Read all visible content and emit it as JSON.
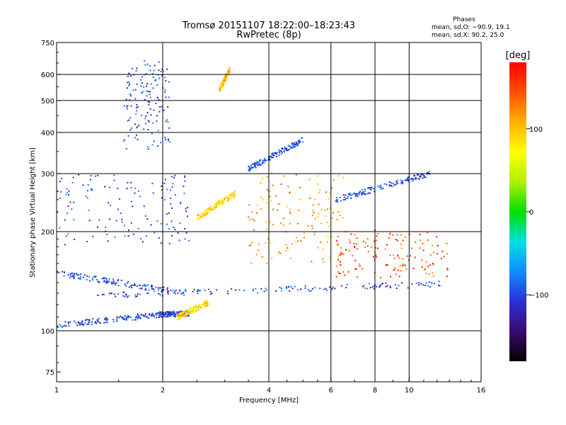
{
  "chart_data": {
    "type": "scatter",
    "title": "Tromsø 20151107 18:22:00–18:23:43",
    "subtitle": "RwPretec (8p)",
    "xlabel": "Frequency [MHz]",
    "ylabel": "Stationary phase Virtual Height [km]",
    "x_scale": "log",
    "y_scale": "log",
    "xlim": [
      1,
      16
    ],
    "ylim": [
      70,
      750
    ],
    "x_ticks": [
      1,
      2,
      4,
      6,
      8,
      10,
      16
    ],
    "x_tick_labels": [
      "1",
      "2",
      "4",
      "6",
      "8",
      "10",
      "16"
    ],
    "x_grid": [
      2,
      4,
      6,
      8,
      10
    ],
    "y_ticks": [
      75,
      100,
      200,
      300,
      400,
      500,
      600,
      750
    ],
    "y_tick_labels": [
      "75",
      "100",
      "200",
      "300",
      "400",
      "500",
      "600",
      "750"
    ],
    "y_grid": [
      100,
      200,
      300,
      400,
      500,
      600
    ],
    "grid": true,
    "legend_position": "top-right",
    "phase_box": {
      "title": "Phases",
      "line1": "mean, sd,O: −90.9, 19.1",
      "line2": "mean, sd,X:  90.2, 25.0"
    },
    "colorbar": {
      "label": "[deg]",
      "range": [
        -180,
        180
      ],
      "ticks": [
        100,
        0,
        -100
      ],
      "tick_labels": [
        "100",
        "0",
        "−100"
      ],
      "colormap": "rainbow",
      "colors": [
        "#000000",
        "#3c0a6e",
        "#2a2fd8",
        "#0f8dff",
        "#00e0e0",
        "#00e000",
        "#b0f000",
        "#ffff00",
        "#ffb000",
        "#ff5000",
        "#ff0000"
      ]
    },
    "trace_groups": [
      {
        "x_range": [
          1.0,
          1.95
        ],
        "y_start": 104,
        "y_end": 112,
        "phase": -100
      },
      {
        "x_range": [
          1.95,
          2.4
        ],
        "y_start": 112,
        "y_end": 113,
        "phase": -100
      },
      {
        "x_range": [
          1.3,
          13.0
        ],
        "y_start": 128,
        "y_end": 139,
        "phase": -100
      },
      {
        "x_range": [
          1.0,
          2.3
        ],
        "y_start": 150,
        "y_end": 130,
        "phase": -100
      },
      {
        "x_range": [
          1.55,
          2.1
        ],
        "y_start": 360,
        "y_end": 650,
        "phase": -100
      },
      {
        "x_range": [
          1.0,
          2.4
        ],
        "y_start": 180,
        "y_end": 300,
        "phase": -100
      },
      {
        "x_range": [
          2.2,
          2.7
        ],
        "y_start": 110,
        "y_end": 122,
        "phase": 90
      },
      {
        "x_range": [
          2.5,
          3.2
        ],
        "y_start": 220,
        "y_end": 260,
        "phase": 90
      },
      {
        "x_range": [
          2.9,
          3.1
        ],
        "y_start": 540,
        "y_end": 620,
        "phase": 100
      },
      {
        "x_range": [
          3.5,
          6.5
        ],
        "y_start": 160,
        "y_end": 300,
        "phase": 120
      },
      {
        "x_range": [
          3.5,
          5.0
        ],
        "y_start": 310,
        "y_end": 380,
        "phase": -100
      },
      {
        "x_range": [
          6.2,
          13.0
        ],
        "y_start": 145,
        "y_end": 200,
        "phase": 150
      },
      {
        "x_range": [
          6.2,
          11.5
        ],
        "y_start": 250,
        "y_end": 300,
        "phase": -100
      }
    ]
  }
}
